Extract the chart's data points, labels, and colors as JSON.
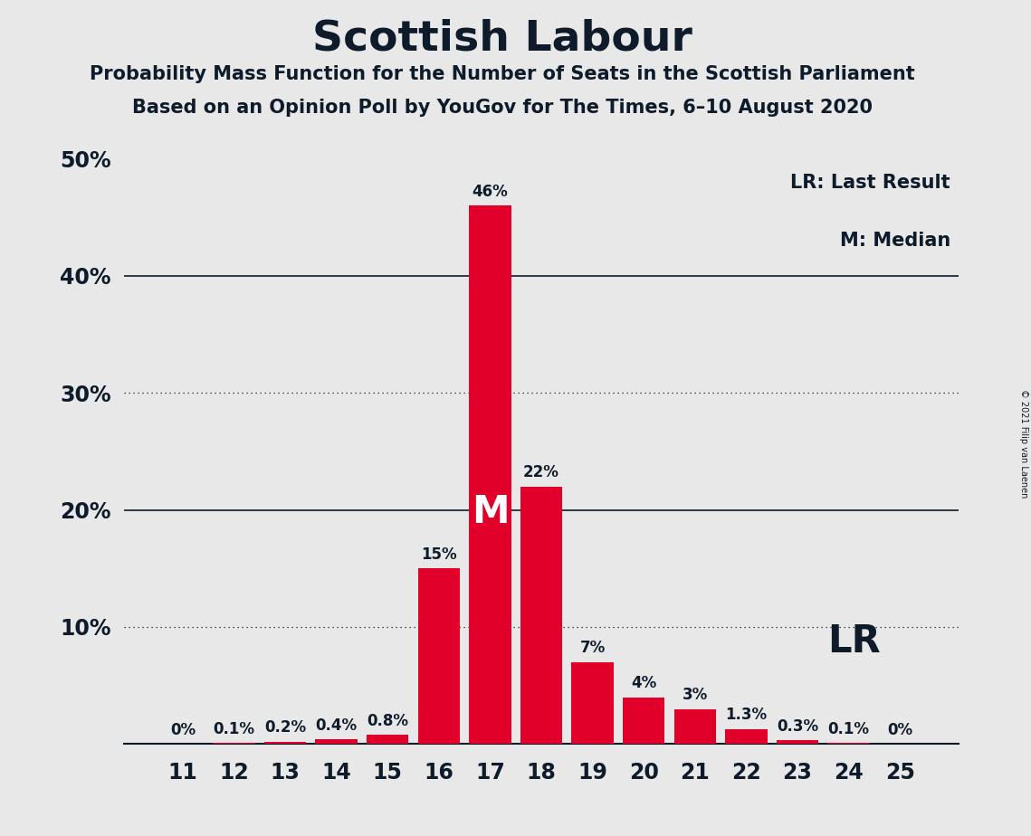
{
  "title": "Scottish Labour",
  "subtitle1": "Probability Mass Function for the Number of Seats in the Scottish Parliament",
  "subtitle2": "Based on an Opinion Poll by YouGov for The Times, 6–10 August 2020",
  "copyright": "© 2021 Filip van Laenen",
  "legend_lr": "LR: Last Result",
  "legend_m": "M: Median",
  "categories": [
    11,
    12,
    13,
    14,
    15,
    16,
    17,
    18,
    19,
    20,
    21,
    22,
    23,
    24,
    25
  ],
  "values": [
    0.0,
    0.1,
    0.2,
    0.4,
    0.8,
    15.0,
    46.0,
    22.0,
    7.0,
    4.0,
    3.0,
    1.3,
    0.3,
    0.1,
    0.0
  ],
  "labels": [
    "0%",
    "0.1%",
    "0.2%",
    "0.4%",
    "0.8%",
    "15%",
    "46%",
    "22%",
    "7%",
    "4%",
    "3%",
    "1.3%",
    "0.3%",
    "0.1%",
    "0%"
  ],
  "bar_color": "#e0002a",
  "background_color": "#e8e8e8",
  "text_color": "#0d1b2a",
  "median_seat": 17,
  "last_result_seat": 24,
  "ylim": [
    0,
    50
  ],
  "yticks": [
    0,
    10,
    20,
    30,
    40,
    50
  ],
  "ytick_labels_display": [
    "",
    "10%",
    "20%",
    "30%",
    "40%",
    "50%"
  ],
  "solid_gridlines": [
    20,
    40
  ],
  "dotted_gridlines": [
    10,
    30
  ],
  "title_fontsize": 34,
  "subtitle_fontsize": 15,
  "tick_fontsize": 17,
  "bar_label_fontsize": 12,
  "legend_fontsize": 15,
  "lr_fontsize": 30,
  "m_fontsize": 30
}
